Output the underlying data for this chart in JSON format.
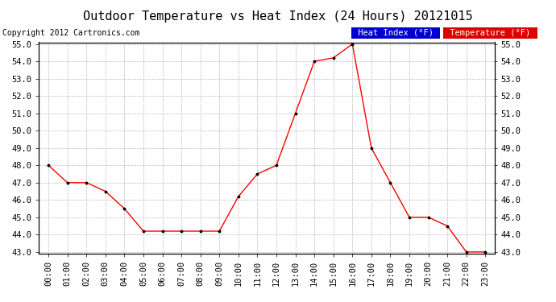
{
  "title": "Outdoor Temperature vs Heat Index (24 Hours) 20121015",
  "copyright": "Copyright 2012 Cartronics.com",
  "hours": [
    "00:00",
    "01:00",
    "02:00",
    "03:00",
    "04:00",
    "05:00",
    "06:00",
    "07:00",
    "08:00",
    "09:00",
    "10:00",
    "11:00",
    "12:00",
    "13:00",
    "14:00",
    "15:00",
    "16:00",
    "17:00",
    "18:00",
    "19:00",
    "20:00",
    "21:00",
    "22:00",
    "23:00"
  ],
  "temperature": [
    48.0,
    47.0,
    47.0,
    46.5,
    45.5,
    44.2,
    44.2,
    44.2,
    44.2,
    44.2,
    46.2,
    47.5,
    48.0,
    51.0,
    54.0,
    54.2,
    55.0,
    49.0,
    47.0,
    45.0,
    45.0,
    44.5,
    43.0,
    43.0
  ],
  "heat_index": [
    48.0,
    47.0,
    47.0,
    46.5,
    45.5,
    44.2,
    44.2,
    44.2,
    44.2,
    44.2,
    46.2,
    47.5,
    48.0,
    51.0,
    54.0,
    54.2,
    55.0,
    49.0,
    47.0,
    45.0,
    45.0,
    44.5,
    43.0,
    43.0
  ],
  "ylim": [
    43.0,
    55.0
  ],
  "yticks": [
    43.0,
    44.0,
    45.0,
    46.0,
    47.0,
    48.0,
    49.0,
    50.0,
    51.0,
    52.0,
    53.0,
    54.0,
    55.0
  ],
  "temp_color": "#ff0000",
  "bg_color": "#ffffff",
  "grid_color": "#bbbbbb",
  "legend_heat_index_bg": "#0000cc",
  "legend_temp_bg": "#dd0000",
  "legend_text_color": "#ffffff",
  "title_fontsize": 11,
  "copyright_fontsize": 7,
  "tick_fontsize": 7.5,
  "legend_fontsize": 7.5
}
